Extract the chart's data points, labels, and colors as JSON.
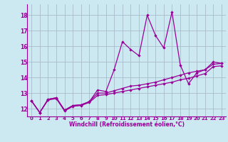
{
  "xlabel": "Windchill (Refroidissement éolien,°C)",
  "bg_color": "#cce8f0",
  "line_color": "#990099",
  "grid_color": "#aabbcc",
  "x_values": [
    0,
    1,
    2,
    3,
    4,
    5,
    6,
    7,
    8,
    9,
    10,
    11,
    12,
    13,
    14,
    15,
    16,
    17,
    18,
    19,
    20,
    21,
    22,
    23
  ],
  "spiky_y": [
    12.5,
    11.75,
    12.6,
    12.7,
    11.9,
    12.2,
    12.25,
    12.45,
    13.2,
    13.1,
    14.5,
    16.3,
    15.8,
    15.4,
    18.0,
    16.7,
    15.9,
    18.2,
    14.8,
    13.6,
    14.3,
    14.5,
    15.0,
    14.9
  ],
  "trend1_y": [
    12.5,
    11.75,
    12.6,
    12.7,
    11.9,
    12.2,
    12.25,
    12.45,
    13.0,
    13.0,
    13.15,
    13.3,
    13.45,
    13.5,
    13.6,
    13.7,
    13.85,
    14.0,
    14.15,
    14.3,
    14.4,
    14.5,
    14.85,
    14.9
  ],
  "trend2_y": [
    12.5,
    11.75,
    12.55,
    12.65,
    11.85,
    12.15,
    12.2,
    12.4,
    12.85,
    12.9,
    13.0,
    13.1,
    13.2,
    13.3,
    13.4,
    13.5,
    13.6,
    13.7,
    13.85,
    13.95,
    14.1,
    14.25,
    14.7,
    14.75
  ],
  "ylim": [
    11.5,
    18.7
  ],
  "xlim": [
    -0.5,
    23.5
  ],
  "yticks": [
    12,
    13,
    14,
    15,
    16,
    17,
    18
  ],
  "xticks": [
    0,
    1,
    2,
    3,
    4,
    5,
    6,
    7,
    8,
    9,
    10,
    11,
    12,
    13,
    14,
    15,
    16,
    17,
    18,
    19,
    20,
    21,
    22,
    23
  ]
}
